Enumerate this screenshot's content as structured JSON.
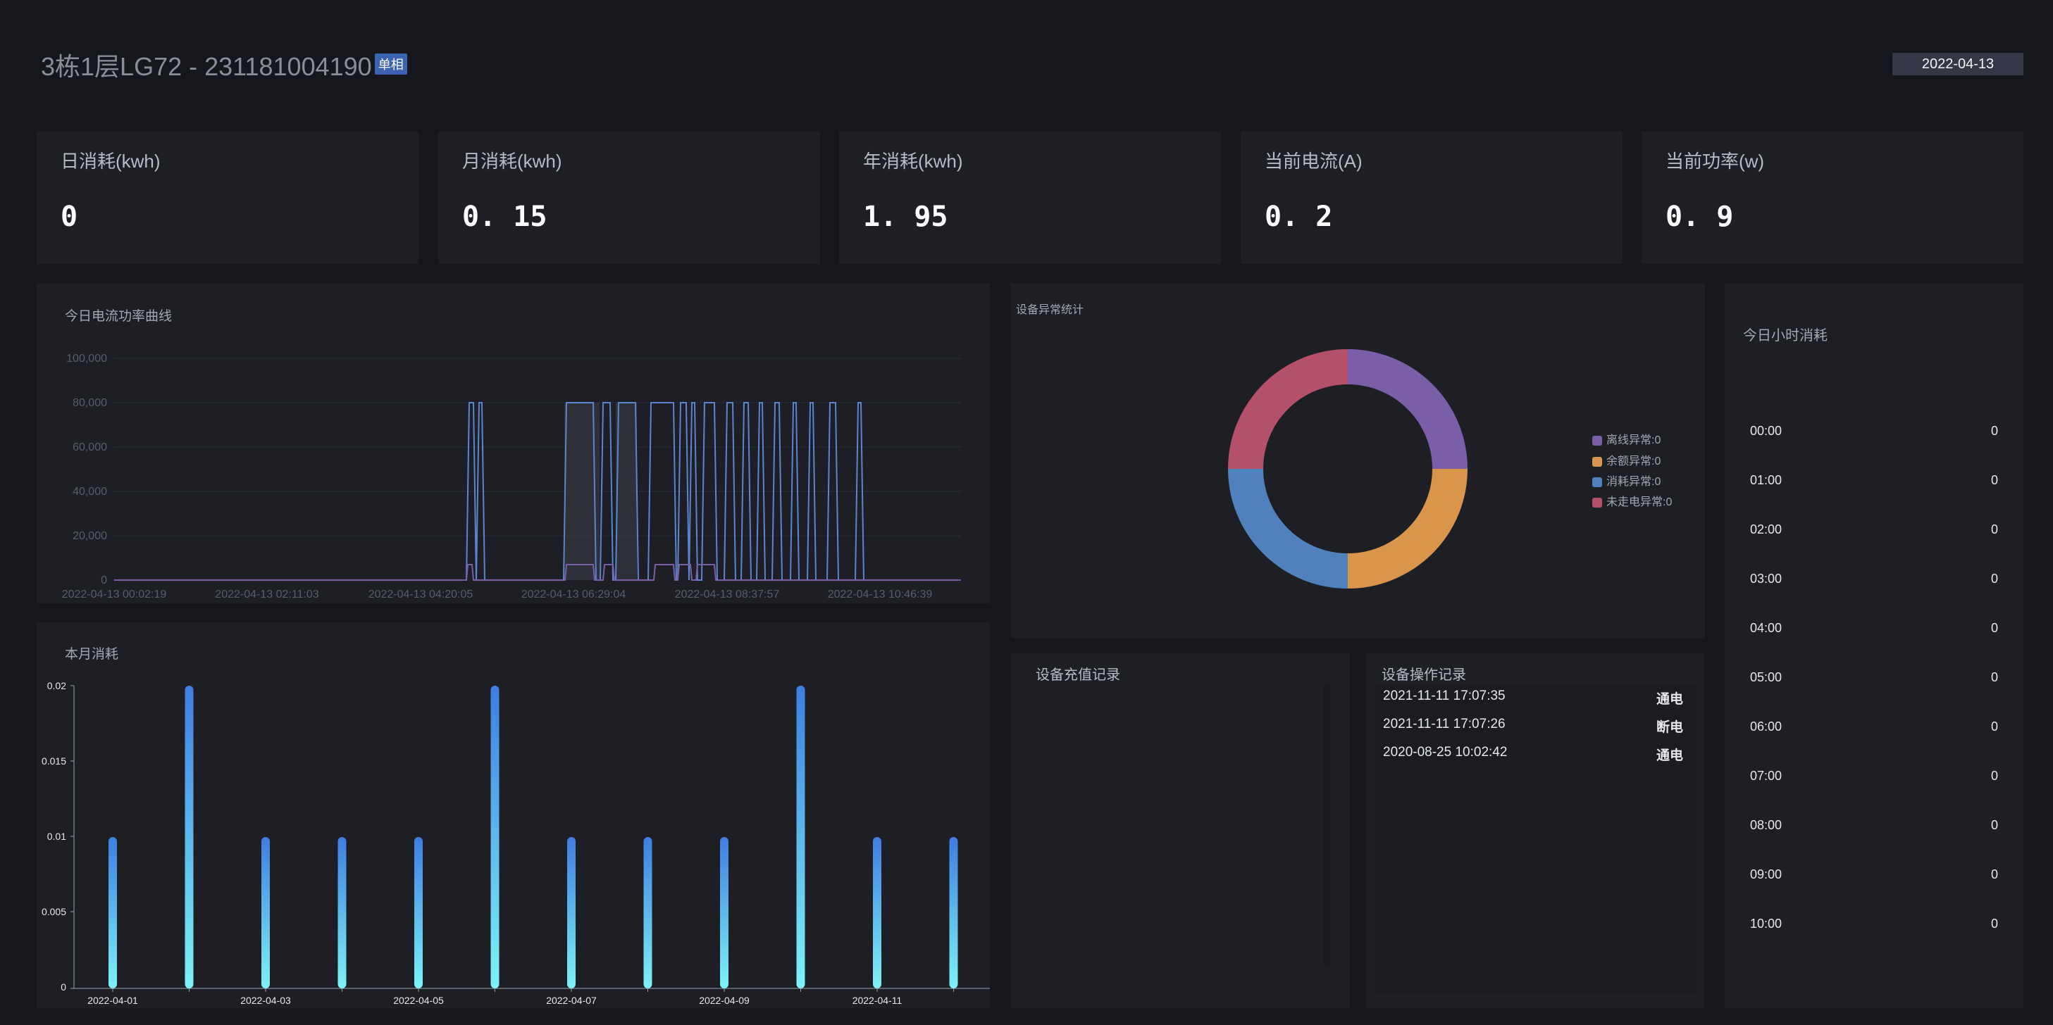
{
  "header": {
    "title": "3栋1层LG72 - 231181004190",
    "badge": "单相",
    "date": "2022-04-13"
  },
  "stats": [
    {
      "label": "日消耗(kwh)",
      "value": "0"
    },
    {
      "label": "月消耗(kwh)",
      "value": "0. 15"
    },
    {
      "label": "年消耗(kwh)",
      "value": "1. 95"
    },
    {
      "label": "当前电流(A)",
      "value": "0. 2"
    },
    {
      "label": "当前功率(w)",
      "value": "0. 9"
    }
  ],
  "power_chart": {
    "title": "今日电流功率曲线",
    "y_ticks": [
      "100,000",
      "80,000",
      "60,000",
      "40,000",
      "20,000",
      "0"
    ],
    "x_ticks": [
      "2022-04-13 00:02:19",
      "2022-04-13 02:11:03",
      "2022-04-13 04:20:05",
      "2022-04-13 06:29:04",
      "2022-04-13 08:37:57",
      "2022-04-13 10:46:39"
    ]
  },
  "anomaly_chart": {
    "title": "设备异常统计",
    "legend": [
      {
        "label": "离线异常:0",
        "color": "#7b5ea8"
      },
      {
        "label": "余额异常:0",
        "color": "#d9954a"
      },
      {
        "label": "消耗异常:0",
        "color": "#4f81bd"
      },
      {
        "label": "未走电异常:0",
        "color": "#b5506a"
      }
    ]
  },
  "hourly": {
    "title": "今日小时消耗",
    "rows": [
      {
        "hour": "00:00",
        "value": "0"
      },
      {
        "hour": "01:00",
        "value": "0"
      },
      {
        "hour": "02:00",
        "value": "0"
      },
      {
        "hour": "03:00",
        "value": "0"
      },
      {
        "hour": "04:00",
        "value": "0"
      },
      {
        "hour": "05:00",
        "value": "0"
      },
      {
        "hour": "06:00",
        "value": "0"
      },
      {
        "hour": "07:00",
        "value": "0"
      },
      {
        "hour": "08:00",
        "value": "0"
      },
      {
        "hour": "09:00",
        "value": "0"
      },
      {
        "hour": "10:00",
        "value": "0"
      }
    ]
  },
  "recharge": {
    "title": "设备充值记录"
  },
  "operations": {
    "title": "设备操作记录",
    "rows": [
      {
        "time": "2021-11-11 17:07:35",
        "action": "通电"
      },
      {
        "time": "2021-11-11 17:07:26",
        "action": "断电"
      },
      {
        "time": "2020-08-25 10:02:42",
        "action": "通电"
      }
    ]
  },
  "chart_data": {
    "type": "bar",
    "title": "本月消耗",
    "x_ticks": [
      "2022-04-01",
      "2022-04-03",
      "2022-04-05",
      "2022-04-07",
      "2022-04-09",
      "2022-04-11"
    ],
    "y_ticks": [
      "0.02",
      "0.015",
      "0.01",
      "0.005",
      "0"
    ],
    "ylim": [
      0,
      0.02
    ],
    "categories": [
      "2022-04-01",
      "2022-04-02",
      "2022-04-03",
      "2022-04-04",
      "2022-04-05",
      "2022-04-06",
      "2022-04-07",
      "2022-04-08",
      "2022-04-09",
      "2022-04-10",
      "2022-04-11",
      "2022-04-12"
    ],
    "values": [
      0.01,
      0.02,
      0.01,
      0.01,
      0.01,
      0.02,
      0.01,
      0.01,
      0.01,
      0.02,
      0.01,
      0.01
    ],
    "colors": {
      "bar_top": "#3f7de0",
      "bar_bottom": "#7ef2f7"
    }
  }
}
